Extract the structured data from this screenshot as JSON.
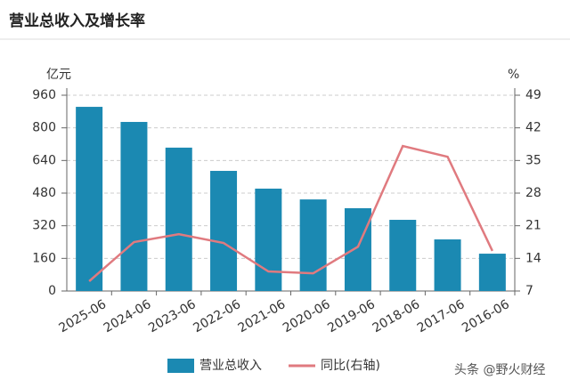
{
  "chart_data": {
    "type": "bar",
    "title": "营业总收入及增长率",
    "y_label": "亿元",
    "y2_label": "%",
    "categories": [
      "2025-06",
      "2024-06",
      "2023-06",
      "2022-06",
      "2021-06",
      "2020-06",
      "2019-06",
      "2018-06",
      "2017-06",
      "2016-06"
    ],
    "series": [
      {
        "name": "营业总收入",
        "type": "bar",
        "color": "#1b89b2",
        "values": [
          903,
          829,
          703,
          589,
          502,
          449,
          406,
          349,
          253,
          183
        ]
      },
      {
        "name": "同比(右轴)",
        "type": "line",
        "axis": "y2",
        "color": "#e07a7f",
        "values": [
          9.1,
          17.5,
          19.2,
          17.3,
          11.2,
          10.8,
          16.5,
          38.1,
          35.8,
          15.6
        ]
      }
    ],
    "ylim": [
      0,
      960
    ],
    "yticks": [
      0,
      160,
      320,
      480,
      640,
      800,
      960
    ],
    "y2lim": [
      7,
      49
    ],
    "y2ticks": [
      7,
      14,
      21,
      28,
      35,
      42,
      49
    ],
    "grid": true,
    "watermark": "头条 @野火财经"
  }
}
